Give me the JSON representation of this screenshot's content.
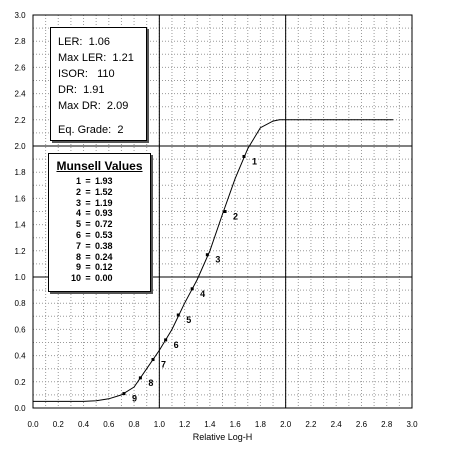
{
  "chart_data": {
    "type": "line",
    "xlabel": "Relative Log-H",
    "xlim": [
      0.0,
      3.0
    ],
    "ylim": [
      0.0,
      3.0
    ],
    "x_ticks": [
      "0.0",
      "0.2",
      "0.4",
      "0.6",
      "0.8",
      "1.0",
      "1.2",
      "1.4",
      "1.6",
      "1.8",
      "2.0",
      "2.2",
      "2.4",
      "2.6",
      "2.8",
      "3.0"
    ],
    "y_ticks": [
      "0.0",
      "0.2",
      "0.4",
      "0.6",
      "0.8",
      "1.0",
      "1.2",
      "1.4",
      "1.6",
      "1.8",
      "2.0",
      "2.2",
      "2.4",
      "2.6",
      "2.8",
      "3.0"
    ],
    "grid": true,
    "major_grid_every": 1.0,
    "curve": [
      [
        0.0,
        0.05
      ],
      [
        0.2,
        0.05
      ],
      [
        0.4,
        0.05
      ],
      [
        0.5,
        0.055
      ],
      [
        0.6,
        0.07
      ],
      [
        0.7,
        0.1
      ],
      [
        0.8,
        0.16
      ],
      [
        0.9,
        0.3
      ],
      [
        1.0,
        0.44
      ],
      [
        1.1,
        0.6
      ],
      [
        1.2,
        0.8
      ],
      [
        1.3,
        0.98
      ],
      [
        1.4,
        1.2
      ],
      [
        1.5,
        1.48
      ],
      [
        1.6,
        1.75
      ],
      [
        1.7,
        1.98
      ],
      [
        1.8,
        2.14
      ],
      [
        1.9,
        2.19
      ],
      [
        1.95,
        2.2
      ],
      [
        2.2,
        2.2
      ],
      [
        2.5,
        2.2
      ],
      [
        2.85,
        2.2
      ]
    ],
    "points": [
      {
        "label": "1",
        "x": 1.67,
        "y": 1.92
      },
      {
        "label": "2",
        "x": 1.52,
        "y": 1.5
      },
      {
        "label": "3",
        "x": 1.38,
        "y": 1.17
      },
      {
        "label": "4",
        "x": 1.26,
        "y": 0.91
      },
      {
        "label": "5",
        "x": 1.15,
        "y": 0.71
      },
      {
        "label": "6",
        "x": 1.05,
        "y": 0.52
      },
      {
        "label": "7",
        "x": 0.95,
        "y": 0.37
      },
      {
        "label": "8",
        "x": 0.85,
        "y": 0.23
      },
      {
        "label": "9",
        "x": 0.72,
        "y": 0.11
      }
    ],
    "colors": {
      "line": "#000000",
      "grid": "#9a9a9a",
      "major_grid": "#000000",
      "frame": "#000000"
    }
  },
  "stats": [
    {
      "label": "LER:",
      "value": "1.06"
    },
    {
      "label": "Max LER:",
      "value": "1.21"
    },
    {
      "label": "ISOR:",
      "value": "110"
    },
    {
      "label": "DR:",
      "value": "1.91"
    },
    {
      "label": "Max DR:",
      "value": "2.09"
    },
    {
      "label": "Eq. Grade:",
      "value": "2"
    }
  ],
  "munsell": {
    "title": "Munsell Values",
    "rows": [
      {
        "k": "1",
        "v": "1.93"
      },
      {
        "k": "2",
        "v": "1.52"
      },
      {
        "k": "3",
        "v": "1.19"
      },
      {
        "k": "4",
        "v": "0.93"
      },
      {
        "k": "5",
        "v": "0.72"
      },
      {
        "k": "6",
        "v": "0.53"
      },
      {
        "k": "7",
        "v": "0.38"
      },
      {
        "k": "8",
        "v": "0.24"
      },
      {
        "k": "9",
        "v": "0.12"
      },
      {
        "k": "10",
        "v": "0.00"
      }
    ]
  }
}
